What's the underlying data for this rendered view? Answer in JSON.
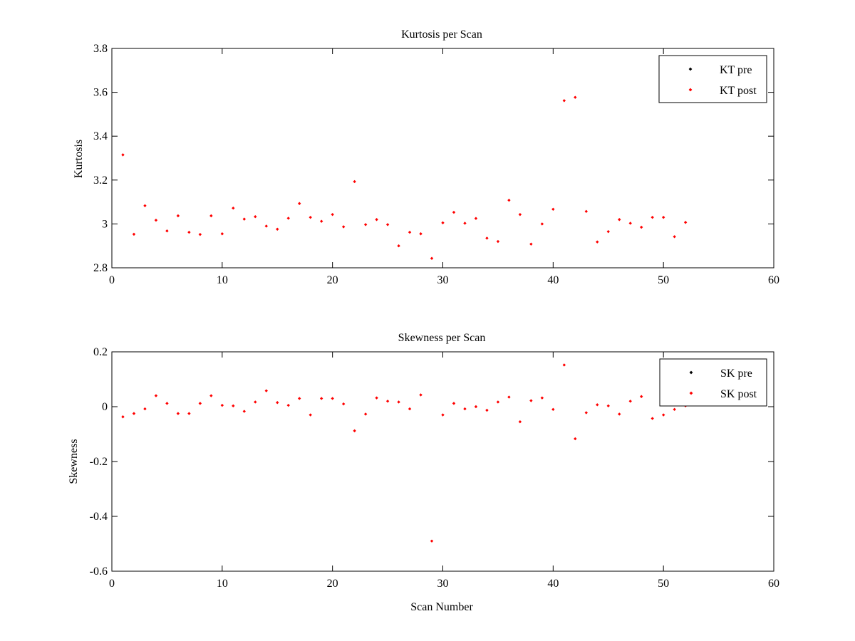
{
  "chart_data": [
    {
      "type": "scatter",
      "title": "Kurtosis per Scan",
      "xlabel": "",
      "ylabel": "Kurtosis",
      "xlim": [
        0,
        60
      ],
      "ylim": [
        2.8,
        3.8
      ],
      "xticks": [
        "0",
        "10",
        "20",
        "30",
        "40",
        "50",
        "60"
      ],
      "yticks": [
        "2.8",
        "3",
        "3.2",
        "3.4",
        "3.6",
        "3.8"
      ],
      "legend_position": "top-right",
      "series": [
        {
          "name": "KT pre",
          "color": "#000000",
          "x": [],
          "y": []
        },
        {
          "name": "KT post",
          "color": "#ff0000",
          "x": [
            1,
            2,
            3,
            4,
            5,
            6,
            7,
            8,
            9,
            10,
            11,
            12,
            13,
            14,
            15,
            16,
            17,
            18,
            19,
            20,
            21,
            22,
            23,
            24,
            25,
            26,
            27,
            28,
            29,
            30,
            31,
            32,
            33,
            34,
            35,
            36,
            37,
            38,
            39,
            40,
            41,
            42,
            43,
            44,
            45,
            46,
            47,
            48,
            49,
            50,
            51,
            52
          ],
          "y": [
            3.315,
            2.953,
            3.083,
            3.017,
            2.968,
            3.037,
            2.962,
            2.952,
            3.037,
            2.955,
            3.072,
            3.022,
            3.033,
            2.99,
            2.976,
            3.026,
            3.093,
            3.03,
            3.012,
            3.043,
            2.987,
            3.193,
            2.997,
            3.02,
            2.997,
            2.9,
            2.962,
            2.955,
            2.843,
            3.005,
            3.053,
            3.003,
            3.025,
            2.935,
            2.92,
            3.108,
            3.043,
            2.908,
            3.0,
            3.067,
            3.562,
            3.577,
            3.057,
            2.918,
            2.965,
            3.02,
            3.003,
            2.985,
            3.03,
            3.03,
            2.942,
            3.007
          ]
        }
      ]
    },
    {
      "type": "scatter",
      "title": "Skewness per Scan",
      "xlabel": "Scan Number",
      "ylabel": "Skewness",
      "xlim": [
        0,
        60
      ],
      "ylim": [
        -0.6,
        0.2
      ],
      "xticks": [
        "0",
        "10",
        "20",
        "30",
        "40",
        "50",
        "60"
      ],
      "yticks": [
        "-0.6",
        "-0.4",
        "-0.2",
        "0",
        "0.2"
      ],
      "legend_position": "top-right",
      "series": [
        {
          "name": "SK pre",
          "color": "#000000",
          "x": [],
          "y": []
        },
        {
          "name": "SK post",
          "color": "#ff0000",
          "x": [
            1,
            2,
            3,
            4,
            5,
            6,
            7,
            8,
            9,
            10,
            11,
            12,
            13,
            14,
            15,
            16,
            17,
            18,
            19,
            20,
            21,
            22,
            23,
            24,
            25,
            26,
            27,
            28,
            29,
            30,
            31,
            32,
            33,
            34,
            35,
            36,
            37,
            38,
            39,
            40,
            41,
            42,
            43,
            44,
            45,
            46,
            47,
            48,
            49,
            50,
            51,
            52
          ],
          "y": [
            -0.037,
            -0.025,
            -0.008,
            0.04,
            0.012,
            -0.025,
            -0.025,
            0.012,
            0.04,
            0.005,
            0.003,
            -0.017,
            0.017,
            0.058,
            0.015,
            0.005,
            0.03,
            -0.03,
            0.03,
            0.03,
            0.01,
            -0.088,
            -0.027,
            0.032,
            0.02,
            0.017,
            -0.008,
            0.043,
            -0.49,
            -0.03,
            0.012,
            -0.008,
            0.0,
            -0.013,
            0.017,
            0.035,
            -0.055,
            0.022,
            0.032,
            -0.01,
            0.152,
            -0.117,
            -0.022,
            0.007,
            0.003,
            -0.027,
            0.02,
            0.037,
            -0.043,
            -0.03,
            -0.01,
            0.003
          ]
        }
      ]
    }
  ]
}
